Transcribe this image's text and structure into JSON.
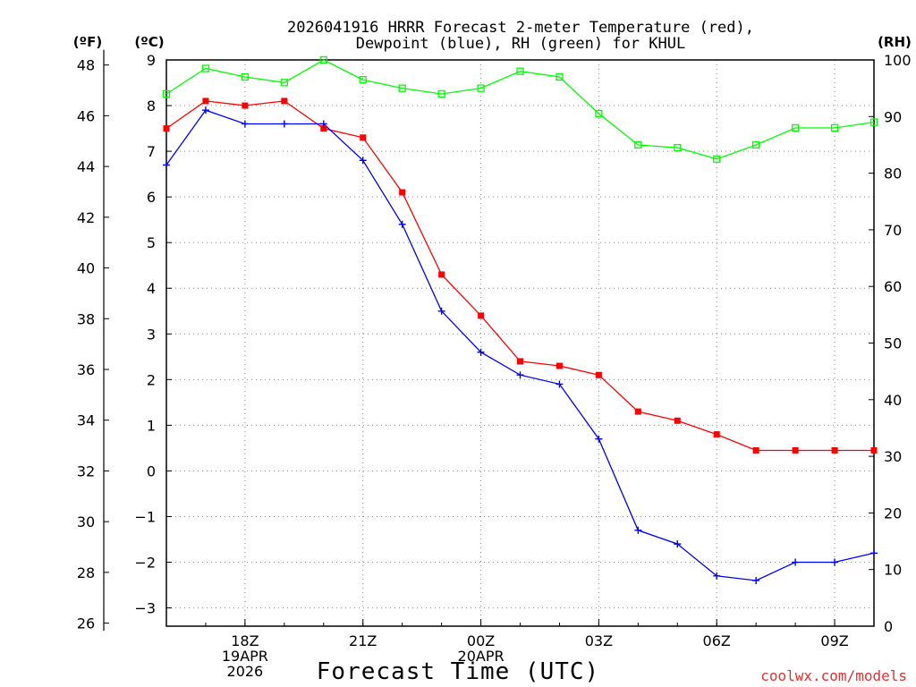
{
  "chart_data": {
    "type": "line",
    "title_line1": "2026041916 HRRR Forecast 2-meter Temperature (red),",
    "title_line2": "Dewpoint (blue), RH (green) for KHUL",
    "xlabel": "Forecast Time (UTC)",
    "credit": "coolwx.com/models",
    "y_left_f_label": "(ºF)",
    "y_left_c_label": "(ºC)",
    "y_right_label": "(RH)",
    "x_hours": [
      16,
      17,
      18,
      19,
      20,
      21,
      22,
      23,
      24,
      25,
      26,
      27,
      28,
      29,
      30,
      31,
      32,
      33,
      34
    ],
    "x_tick_labels": [
      {
        "hour": 18,
        "lines": [
          "18Z",
          "19APR",
          "2026"
        ]
      },
      {
        "hour": 21,
        "lines": [
          "21Z"
        ]
      },
      {
        "hour": 24,
        "lines": [
          "00Z",
          "20APR"
        ]
      },
      {
        "hour": 27,
        "lines": [
          "03Z"
        ]
      },
      {
        "hour": 30,
        "lines": [
          "06Z"
        ]
      },
      {
        "hour": 33,
        "lines": [
          "09Z"
        ]
      }
    ],
    "ylim_c": [
      -3.4,
      9.0
    ],
    "ylim_rh": [
      0,
      100
    ],
    "y_ticks_f": [
      26,
      28,
      30,
      32,
      34,
      36,
      38,
      40,
      42,
      44,
      46,
      48
    ],
    "y_ticks_c": [
      -3,
      -2,
      -1,
      0,
      1,
      2,
      3,
      4,
      5,
      6,
      7,
      8,
      9
    ],
    "y_ticks_rh": [
      0,
      10,
      20,
      30,
      40,
      50,
      60,
      70,
      80,
      90,
      100
    ],
    "series": [
      {
        "name": "Temperature",
        "color": "#ff0000",
        "marker": "filled-square",
        "values_c": [
          7.5,
          8.1,
          8.0,
          8.1,
          7.5,
          7.3,
          6.1,
          4.3,
          3.4,
          2.4,
          2.3,
          2.1,
          1.3,
          1.1,
          0.8,
          0.45,
          0.45,
          0.45,
          0.45
        ]
      },
      {
        "name": "Dewpoint",
        "color": "#0000ff",
        "marker": "plus",
        "values_c": [
          6.7,
          7.9,
          7.6,
          7.6,
          7.6,
          6.8,
          5.4,
          3.5,
          2.6,
          2.1,
          1.9,
          0.7,
          -1.3,
          -1.6,
          -2.3,
          -2.4,
          -2.0,
          -2.0,
          -1.8
        ]
      },
      {
        "name": "RH",
        "color": "#00ff00",
        "marker": "open-square",
        "values": [
          94,
          98.5,
          97,
          96,
          100,
          96.5,
          95,
          94,
          95,
          98,
          97,
          90.5,
          85,
          84.5,
          82.5,
          85,
          88,
          88,
          89
        ]
      }
    ],
    "grid": true
  }
}
